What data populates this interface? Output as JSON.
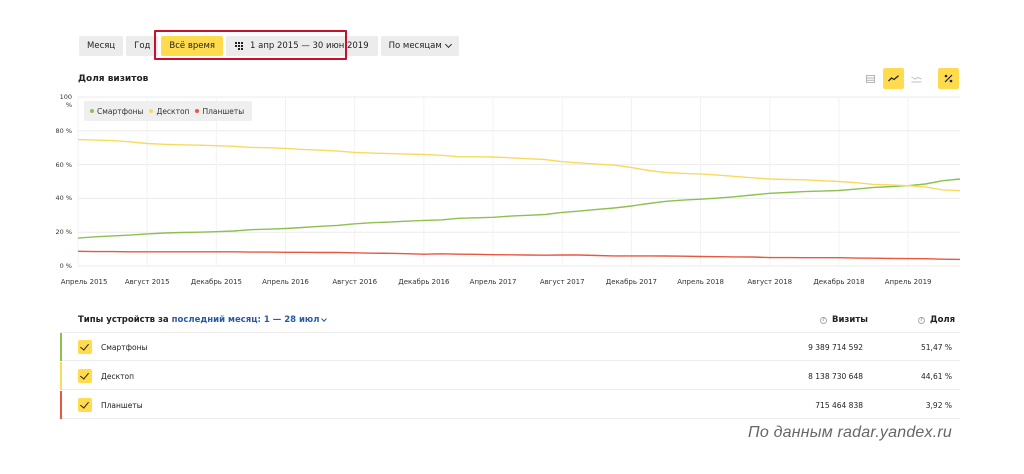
{
  "toolbar": {
    "buttons": [
      {
        "label": "Месяц",
        "active": false
      },
      {
        "label": "Год",
        "active": false
      },
      {
        "label": "Всё время",
        "active": true
      }
    ],
    "date_range": "1 апр 2015 — 30 июн 2019",
    "grouping": "По месяцам"
  },
  "chart_section": {
    "title": "Доля визитов",
    "view_icons": [
      "table-view-icon",
      "line-chart-icon",
      "area-chart-icon",
      "percent-icon"
    ]
  },
  "chart_data": {
    "type": "line",
    "title": "Доля визитов",
    "xlabel": "",
    "ylabel": "",
    "ylim": [
      0,
      100
    ],
    "y_ticks": [
      "0 %",
      "20 %",
      "40 %",
      "60 %",
      "80 %",
      "100 %"
    ],
    "x_ticks": [
      "Апрель 2015",
      "Август 2015",
      "Декабрь 2015",
      "Апрель 2016",
      "Август 2016",
      "Декабрь 2016",
      "Апрель 2017",
      "Август 2017",
      "Декабрь 2017",
      "Апрель 2018",
      "Август 2018",
      "Декабрь 2018",
      "Апрель 2019"
    ],
    "x_tick_index": [
      0,
      4,
      8,
      12,
      16,
      20,
      24,
      28,
      32,
      36,
      40,
      44,
      48
    ],
    "grid": true,
    "legend_position": "top-left",
    "series": [
      {
        "name": "Смартфоны",
        "color": "#8cc152",
        "values": [
          16.5,
          17.3,
          17.8,
          18.3,
          19,
          19.5,
          19.8,
          20,
          20.3,
          20.7,
          21.5,
          21.8,
          22.2,
          22.8,
          23.5,
          24,
          25,
          25.6,
          26,
          26.5,
          27,
          27.3,
          28.2,
          28.5,
          28.8,
          29.5,
          30,
          30.5,
          31.7,
          32.5,
          33.5,
          34.3,
          35.5,
          37,
          38.3,
          39,
          39.5,
          40.2,
          41,
          42,
          43,
          43.5,
          44,
          44.3,
          44.7,
          45.5,
          46.5,
          47,
          47.5,
          48.5,
          50.5,
          51.47
        ]
      },
      {
        "name": "Десктоп",
        "color": "#fad961",
        "values": [
          74.8,
          74.5,
          74.2,
          73.5,
          72.5,
          72,
          71.7,
          71.5,
          71.2,
          70.8,
          70.2,
          70,
          69.6,
          69,
          68.5,
          68,
          67.2,
          66.8,
          66.5,
          66.2,
          66,
          65.5,
          64.7,
          64.6,
          64.5,
          64,
          63.5,
          63,
          61.7,
          61,
          60.3,
          59.7,
          58.3,
          56.5,
          55.3,
          54.8,
          54.5,
          53.8,
          53,
          52.2,
          51.5,
          51.2,
          51,
          50.5,
          50,
          49.3,
          48.3,
          48,
          47.5,
          46.8,
          45,
          44.61
        ]
      },
      {
        "name": "Планшеты",
        "color": "#e9573f",
        "values": [
          8.7,
          8.5,
          8.5,
          8.4,
          8.4,
          8.4,
          8.4,
          8.4,
          8.4,
          8.4,
          8.2,
          8.2,
          8.1,
          8.1,
          8,
          8,
          7.8,
          7.6,
          7.5,
          7.3,
          7,
          7.2,
          7,
          6.9,
          6.7,
          6.6,
          6.5,
          6.4,
          6.5,
          6.5,
          6.2,
          6,
          6,
          6,
          5.9,
          5.8,
          5.6,
          5.5,
          5.4,
          5.3,
          5,
          5,
          4.9,
          4.9,
          4.9,
          4.7,
          4.6,
          4.5,
          4.4,
          4.3,
          4,
          3.92
        ]
      }
    ]
  },
  "table": {
    "heading": "Типы устройств за",
    "period_link": "последний месяц: 1 — 28 июл",
    "col_visits": "Визиты",
    "col_share": "Доля",
    "rows": [
      {
        "name": "Смартфоны",
        "visits": "9 389 714 592",
        "share": "51,47 %",
        "color": "#8cc152"
      },
      {
        "name": "Десктоп",
        "visits": "8 138 730 648",
        "share": "44,61 %",
        "color": "#fad961"
      },
      {
        "name": "Планшеты",
        "visits": "715 464 838",
        "share": "3,92 %",
        "color": "#e9573f"
      }
    ]
  },
  "source_note": "По данным radar.yandex.ru",
  "colors": {
    "accent": "#ffdb4d",
    "highlight": "#c8102e",
    "link": "#2a5aa8"
  }
}
